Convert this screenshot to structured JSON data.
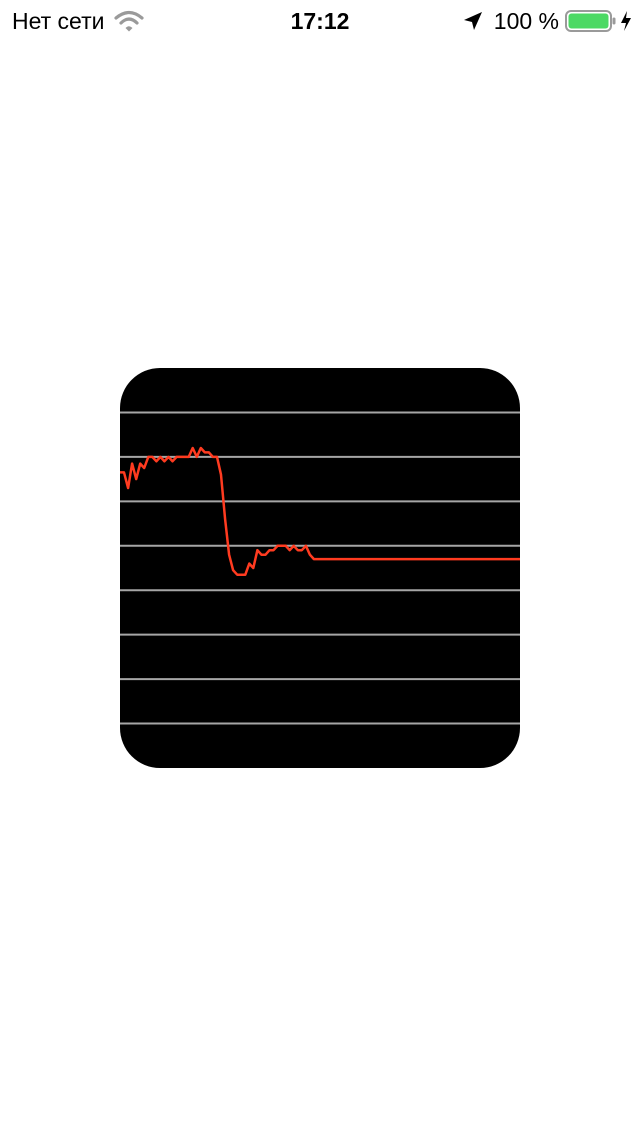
{
  "status_bar": {
    "carrier": "Нет сети",
    "time": "17:12",
    "battery_percent": "100 %",
    "battery_level": 1.0,
    "icons": [
      "wifi-icon",
      "location-arrow-icon",
      "battery-icon",
      "charging-bolt-icon"
    ]
  },
  "colors": {
    "background": "#ffffff",
    "card": "#000000",
    "gridline": "#a6a6a6",
    "series": "#ff3b20",
    "battery_fill": "#4cd964"
  },
  "chart_data": {
    "type": "line",
    "grid": true,
    "ylim": [
      0,
      9
    ],
    "x": [
      0,
      1,
      2,
      3,
      4,
      5,
      6,
      7,
      8,
      9,
      10,
      11,
      12,
      13,
      14,
      15,
      16,
      17,
      18,
      19,
      20,
      21,
      22,
      23,
      24,
      25,
      26,
      27,
      28,
      29,
      30,
      31,
      32,
      33,
      34,
      35,
      36,
      37,
      38,
      39,
      40,
      41,
      42,
      43,
      44,
      45,
      46,
      47,
      48,
      49,
      50,
      51,
      52,
      53,
      54,
      55,
      56,
      57,
      58,
      59,
      60,
      61,
      62,
      63,
      64,
      65,
      66,
      67,
      68,
      69,
      70,
      71,
      72,
      73,
      74,
      75,
      76,
      77,
      78,
      79,
      80,
      81,
      82,
      83,
      84,
      85,
      86,
      87,
      88,
      89,
      90,
      91,
      92,
      93,
      94,
      95,
      96,
      97,
      98,
      99
    ],
    "series": [
      {
        "values": [
          6.65,
          6.65,
          6.3,
          6.85,
          6.5,
          6.85,
          6.75,
          7.0,
          7.0,
          6.9,
          7.0,
          6.9,
          7.0,
          6.9,
          7.0,
          7.0,
          7.0,
          7.0,
          7.2,
          7.0,
          7.2,
          7.1,
          7.1,
          7.0,
          7.0,
          6.6,
          5.6,
          4.8,
          4.45,
          4.35,
          4.35,
          4.35,
          4.6,
          4.5,
          4.9,
          4.8,
          4.8,
          4.9,
          4.9,
          5.0,
          5.0,
          5.0,
          4.9,
          5.0,
          4.9,
          4.9,
          5.0,
          4.8,
          4.7,
          4.7,
          4.7,
          4.7,
          4.7,
          4.7,
          4.7,
          4.7,
          4.7,
          4.7,
          4.7,
          4.7,
          4.7,
          4.7,
          4.7,
          4.7,
          4.7,
          4.7,
          4.7,
          4.7,
          4.7,
          4.7,
          4.7,
          4.7,
          4.7,
          4.7,
          4.7,
          4.7,
          4.7,
          4.7,
          4.7,
          4.7,
          4.7,
          4.7,
          4.7,
          4.7,
          4.7,
          4.7,
          4.7,
          4.7,
          4.7,
          4.7,
          4.7,
          4.7,
          4.7,
          4.7,
          4.7,
          4.7,
          4.7,
          4.7,
          4.7,
          4.7
        ]
      }
    ]
  }
}
